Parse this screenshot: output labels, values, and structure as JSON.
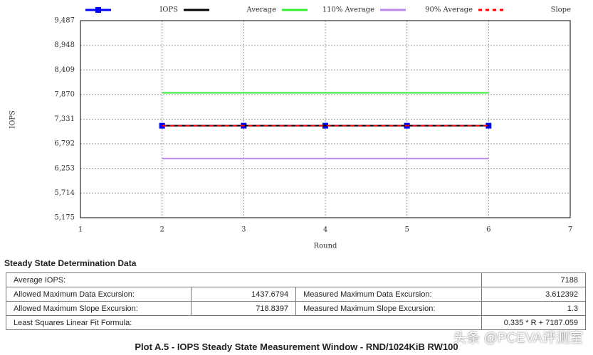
{
  "chart_data": {
    "type": "line",
    "x": [
      2,
      3,
      4,
      5,
      6
    ],
    "xlim": [
      1,
      7
    ],
    "xticks": [
      1,
      2,
      3,
      4,
      5,
      6,
      7
    ],
    "ylim": [
      5175,
      9487
    ],
    "yticks": [
      {
        "value": 5175,
        "label": "5,175"
      },
      {
        "value": 5714,
        "label": "5,714"
      },
      {
        "value": 6253,
        "label": "6,253"
      },
      {
        "value": 6792,
        "label": "6,792"
      },
      {
        "value": 7331,
        "label": "7,331"
      },
      {
        "value": 7870,
        "label": "7,870"
      },
      {
        "value": 8409,
        "label": "8,409"
      },
      {
        "value": 8948,
        "label": "8,948"
      },
      {
        "value": 9487,
        "label": "9,487"
      }
    ],
    "xlabel": "Round",
    "ylabel": "IOPS",
    "grid": true,
    "series": [
      {
        "name": "IOPS",
        "color": "#0000ff",
        "marker": "square",
        "values": [
          7188,
          7188,
          7188,
          7188,
          7188
        ]
      },
      {
        "name": "Average",
        "color": "#000000",
        "values": [
          7188,
          7188,
          7188,
          7188,
          7188
        ]
      },
      {
        "name": "110% Average",
        "color": "#33ee33",
        "values": [
          7906.8,
          7906.8,
          7906.8,
          7906.8,
          7906.8
        ]
      },
      {
        "name": "90% Average",
        "color": "#bb88ee",
        "values": [
          6469.2,
          6469.2,
          6469.2,
          6469.2,
          6469.2
        ]
      },
      {
        "name": "Slope",
        "color": "#ff0000",
        "dash": true,
        "values": [
          7187.73,
          7188.06,
          7188.4,
          7188.73,
          7189.07
        ]
      }
    ]
  },
  "table": {
    "title": "Steady State Determination Data",
    "rows": [
      [
        "Average IOPS:",
        "7188"
      ],
      [
        "Allowed Maximum Data Excursion:",
        "1437.6794",
        "Measured Maximum Data Excursion:",
        "3.612392"
      ],
      [
        "Allowed Maximum Slope Excursion:",
        "718.8397",
        "Measured Maximum Slope Excursion:",
        "1.3"
      ],
      [
        "Least Squares Linear Fit Formula:",
        "0.335 * R + 7187.059"
      ]
    ]
  },
  "caption": "Plot A.5 - IOPS Steady State Measurement Window - RND/1024KiB RW100",
  "watermark": "头条 @PCEVA评测室"
}
